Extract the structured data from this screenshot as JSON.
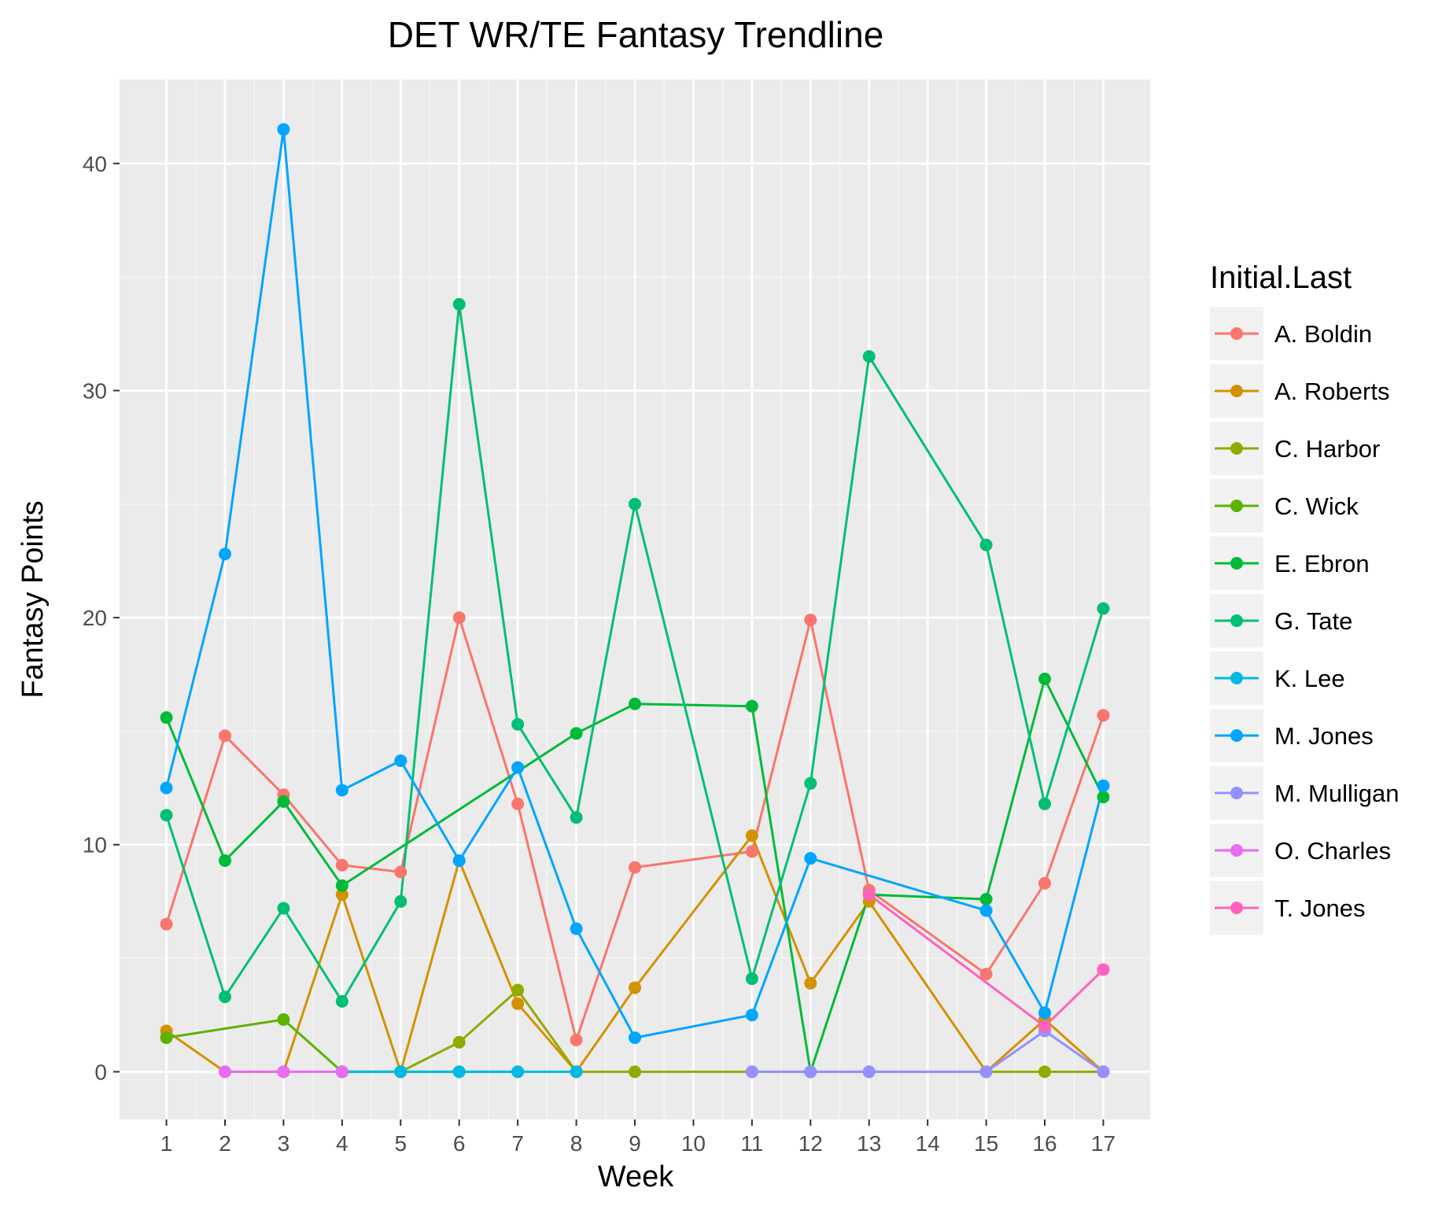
{
  "chart_data": {
    "type": "line",
    "title": "DET WR/TE Fantasy Trendline",
    "xlabel": "Week",
    "ylabel": "Fantasy Points",
    "x_ticks": [
      1,
      2,
      3,
      4,
      5,
      6,
      7,
      8,
      9,
      10,
      11,
      12,
      13,
      14,
      15,
      16,
      17
    ],
    "y_ticks": [
      0,
      10,
      20,
      30,
      40
    ],
    "xlim": [
      0.2,
      17.8
    ],
    "ylim": [
      -2.1,
      43.7
    ],
    "grid": true,
    "legend": {
      "title": "Initial.Last",
      "position": "right"
    },
    "series": [
      {
        "name": "A. Boldin",
        "color": "#F8766D",
        "points": [
          [
            1,
            6.5
          ],
          [
            2,
            14.8
          ],
          [
            3,
            12.2
          ],
          [
            4,
            9.1
          ],
          [
            5,
            8.8
          ],
          [
            6,
            20.0
          ],
          [
            7,
            11.8
          ],
          [
            8,
            1.4
          ],
          [
            9,
            9.0
          ],
          [
            11,
            9.7
          ],
          [
            12,
            19.9
          ],
          [
            13,
            8.0
          ],
          [
            15,
            4.3
          ],
          [
            16,
            8.3
          ],
          [
            17,
            15.7
          ]
        ]
      },
      {
        "name": "A. Roberts",
        "color": "#D39200",
        "points": [
          [
            1,
            1.8
          ],
          [
            2,
            0.0
          ],
          [
            3,
            0.0
          ],
          [
            4,
            7.8
          ],
          [
            5,
            0.0
          ],
          [
            6,
            9.3
          ],
          [
            7,
            3.0
          ],
          [
            8,
            0.0
          ],
          [
            9,
            3.7
          ],
          [
            11,
            10.4
          ],
          [
            12,
            3.9
          ],
          [
            13,
            7.5
          ],
          [
            15,
            0.0
          ],
          [
            16,
            2.3
          ],
          [
            17,
            0.0
          ]
        ]
      },
      {
        "name": "C. Harbor",
        "color": "#93AA00",
        "points": [
          [
            4,
            0.0
          ],
          [
            5,
            0.0
          ],
          [
            6,
            1.3
          ],
          [
            7,
            3.6
          ],
          [
            8,
            0.0
          ],
          [
            9,
            0.0
          ],
          [
            11,
            0.0
          ],
          [
            12,
            0.0
          ],
          [
            13,
            0.0
          ],
          [
            15,
            0.0
          ],
          [
            16,
            0.0
          ],
          [
            17,
            0.0
          ]
        ]
      },
      {
        "name": "C. Wick",
        "color": "#5BB300",
        "points": [
          [
            1,
            1.5
          ],
          [
            3,
            2.3
          ],
          [
            4,
            0.0
          ],
          [
            5,
            0.0
          ],
          [
            6,
            0.0
          ],
          [
            7,
            0.0
          ]
        ]
      },
      {
        "name": "E. Ebron",
        "color": "#00BA38",
        "points": [
          [
            1,
            15.6
          ],
          [
            2,
            9.3
          ],
          [
            3,
            11.9
          ],
          [
            4,
            8.2
          ],
          [
            8,
            14.9
          ],
          [
            9,
            16.2
          ],
          [
            11,
            16.1
          ],
          [
            12,
            0.0
          ],
          [
            13,
            7.8
          ],
          [
            15,
            7.6
          ],
          [
            16,
            17.3
          ],
          [
            17,
            12.1
          ]
        ]
      },
      {
        "name": "G. Tate",
        "color": "#00BF74",
        "points": [
          [
            1,
            11.3
          ],
          [
            2,
            3.3
          ],
          [
            3,
            7.2
          ],
          [
            4,
            3.1
          ],
          [
            5,
            7.5
          ],
          [
            6,
            33.8
          ],
          [
            7,
            15.3
          ],
          [
            8,
            11.2
          ],
          [
            9,
            25.0
          ],
          [
            11,
            4.1
          ],
          [
            12,
            12.7
          ],
          [
            13,
            31.5
          ],
          [
            15,
            23.2
          ],
          [
            16,
            11.8
          ],
          [
            17,
            20.4
          ]
        ]
      },
      {
        "name": "K. Lee",
        "color": "#00B9E3",
        "points": [
          [
            4,
            0.0
          ],
          [
            5,
            0.0
          ],
          [
            6,
            0.0
          ],
          [
            7,
            0.0
          ],
          [
            8,
            0.0
          ]
        ]
      },
      {
        "name": "M. Jones",
        "color": "#00A5FF",
        "points": [
          [
            1,
            12.5
          ],
          [
            2,
            22.8
          ],
          [
            3,
            41.5
          ],
          [
            4,
            12.4
          ],
          [
            5,
            13.7
          ],
          [
            6,
            9.3
          ],
          [
            7,
            13.4
          ],
          [
            8,
            6.3
          ],
          [
            9,
            1.5
          ],
          [
            11,
            2.5
          ],
          [
            12,
            9.4
          ],
          [
            15,
            7.1
          ],
          [
            16,
            2.6
          ],
          [
            17,
            12.6
          ]
        ]
      },
      {
        "name": "M. Mulligan",
        "color": "#9590FF",
        "points": [
          [
            11,
            0.0
          ],
          [
            12,
            0.0
          ],
          [
            13,
            0.0
          ],
          [
            15,
            0.0
          ],
          [
            16,
            1.8
          ],
          [
            17,
            0.0
          ]
        ]
      },
      {
        "name": "O. Charles",
        "color": "#E76BF3",
        "points": [
          [
            2,
            0.0
          ],
          [
            3,
            0.0
          ],
          [
            4,
            0.0
          ]
        ]
      },
      {
        "name": "T. Jones",
        "color": "#FF62BC",
        "points": [
          [
            13,
            7.8
          ],
          [
            16,
            2.0
          ],
          [
            17,
            4.5
          ]
        ]
      }
    ]
  }
}
